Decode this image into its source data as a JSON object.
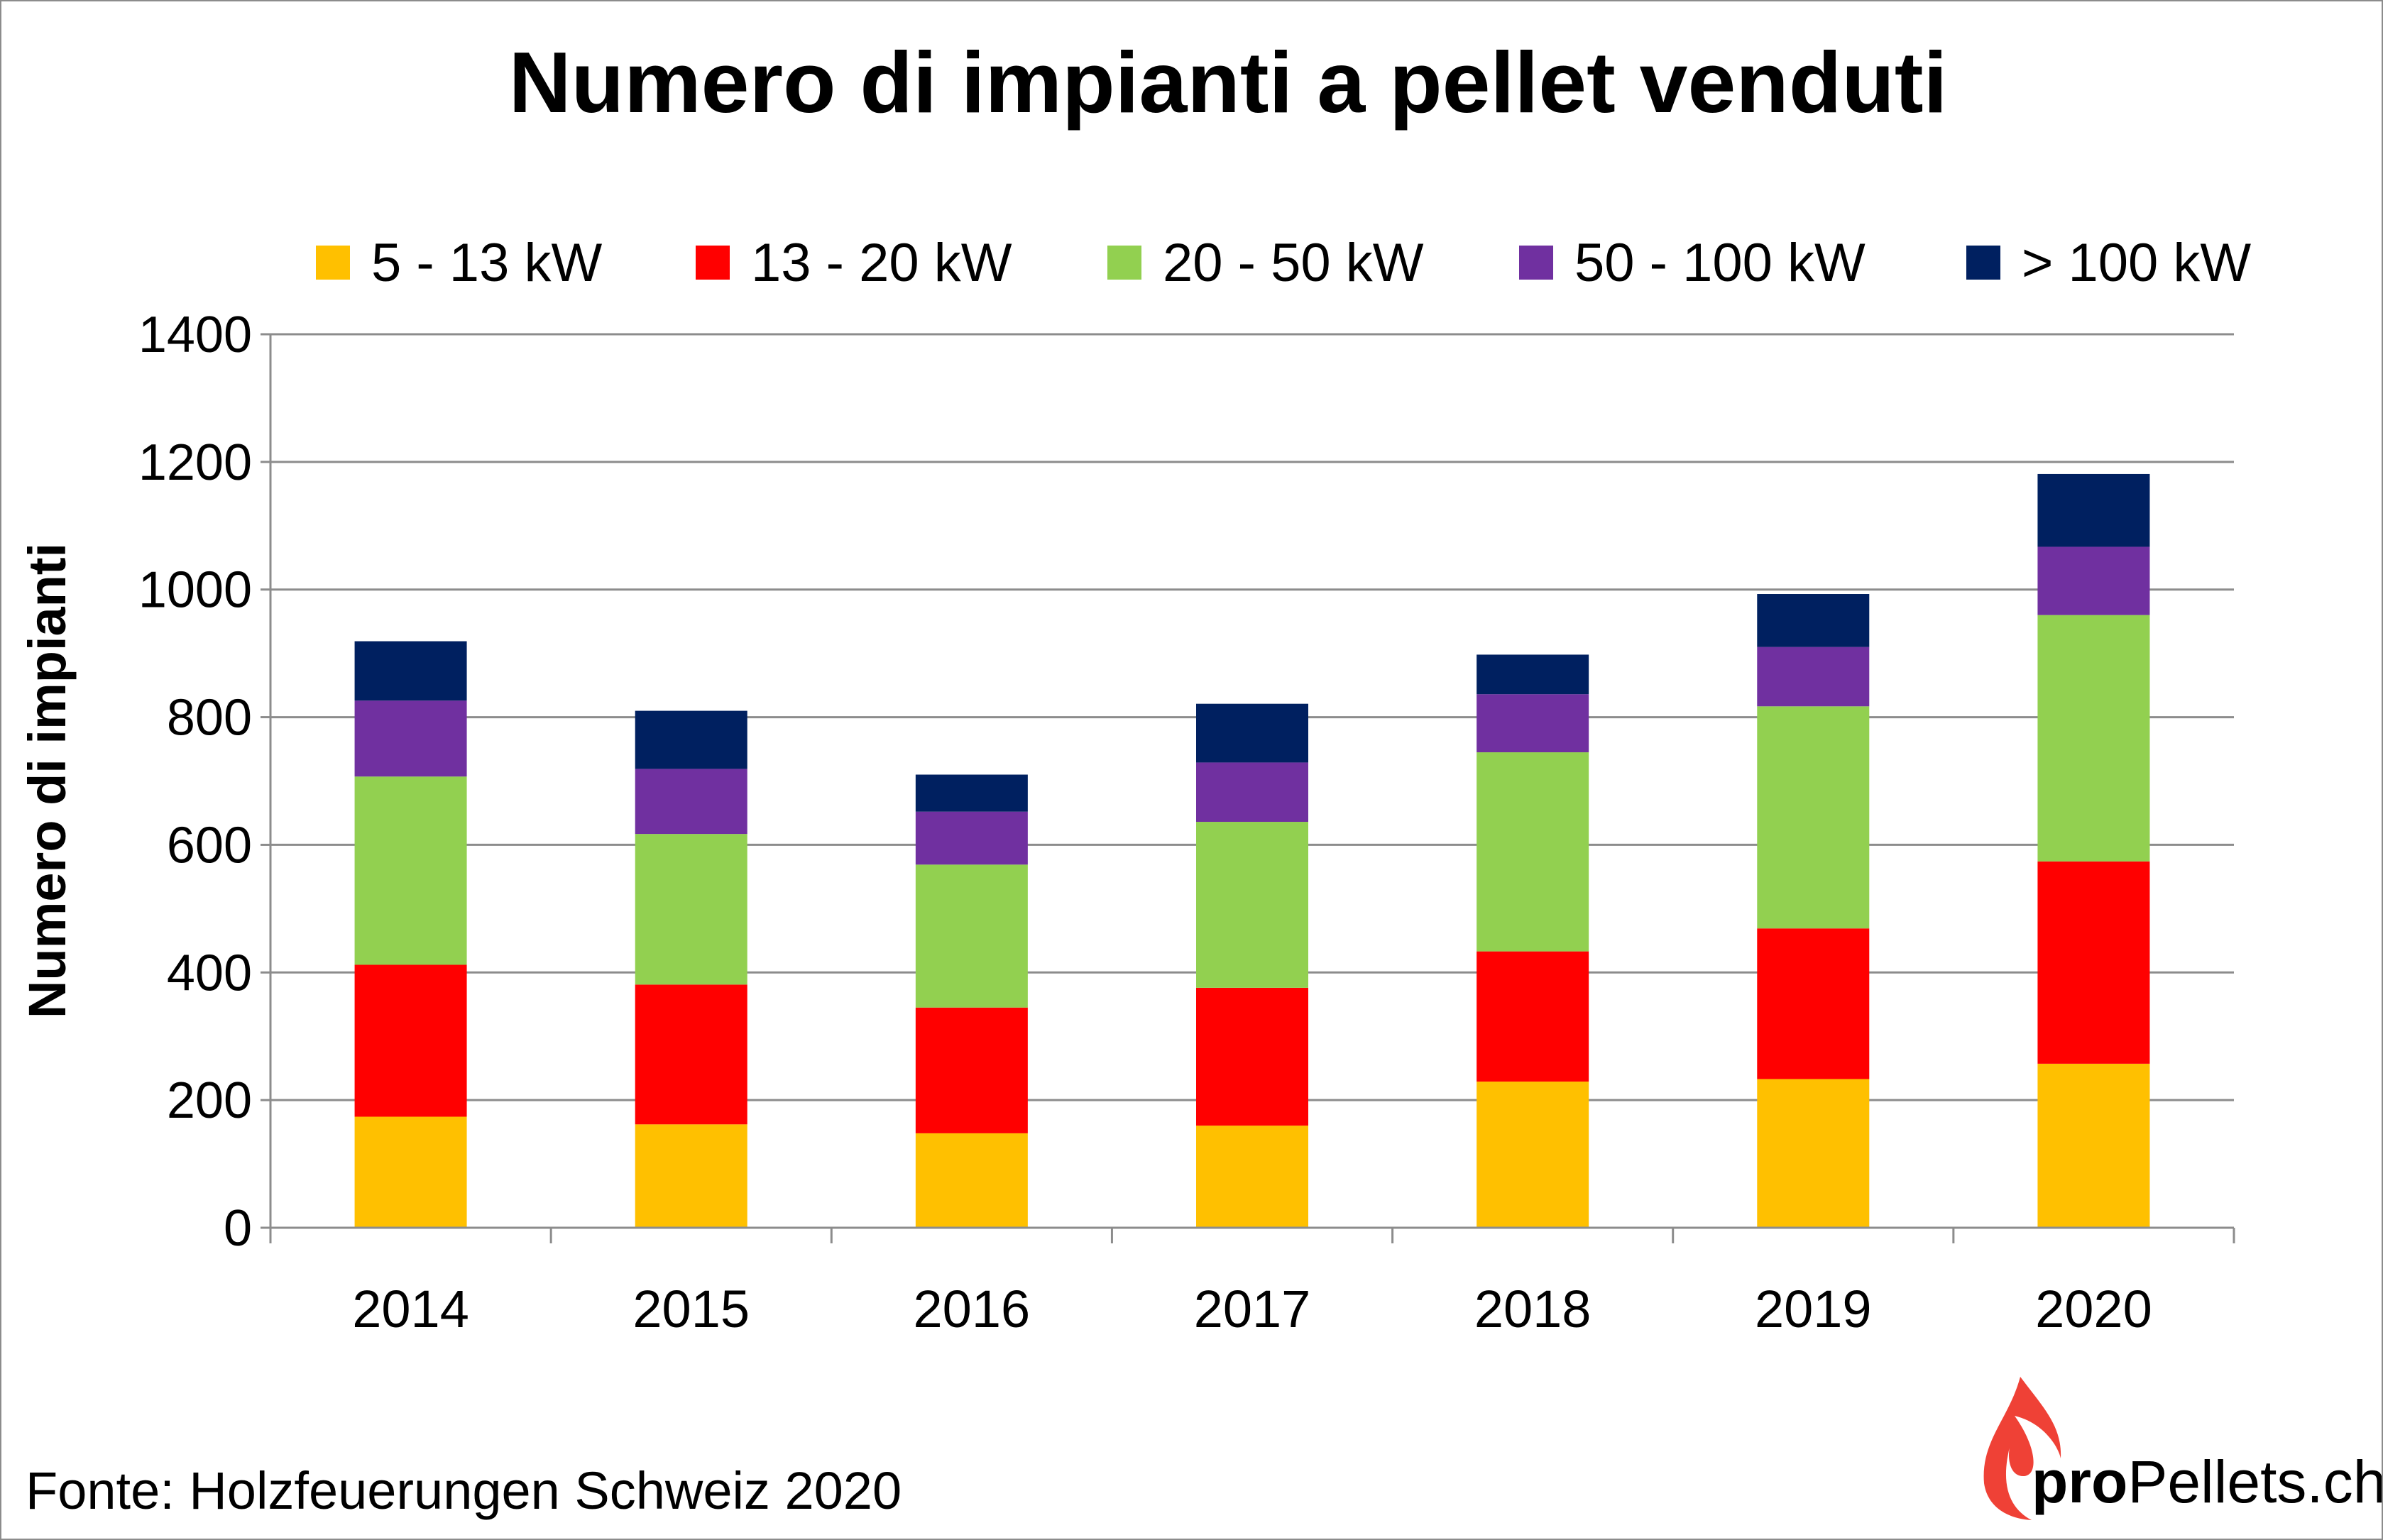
{
  "chart_data": {
    "type": "bar",
    "stacked": true,
    "title": "Numero di impianti a pellet venduti",
    "xlabel": "",
    "ylabel": "Numero di impianti",
    "ylim": [
      0,
      1400
    ],
    "yticks": [
      0,
      200,
      400,
      600,
      800,
      1000,
      1200,
      1400
    ],
    "grid": true,
    "legend_position": "top",
    "categories": [
      "2014",
      "2015",
      "2016",
      "2017",
      "2018",
      "2019",
      "2020"
    ],
    "series": [
      {
        "name": "5 - 13 kW",
        "color": "#FFC000",
        "values": [
          174,
          162,
          148,
          160,
          229,
          233,
          257
        ]
      },
      {
        "name": "13 - 20 kW",
        "color": "#FF0000",
        "values": [
          238,
          219,
          197,
          216,
          204,
          236,
          317
        ]
      },
      {
        "name": "20 - 50 kW",
        "color": "#92D050",
        "values": [
          295,
          236,
          224,
          260,
          312,
          348,
          386
        ]
      },
      {
        "name": "50 - 100 kW",
        "color": "#7030A0",
        "values": [
          119,
          102,
          83,
          93,
          91,
          93,
          107
        ]
      },
      {
        "name": "> 100 kW",
        "color": "#002060",
        "values": [
          93,
          91,
          58,
          92,
          62,
          83,
          114
        ]
      }
    ]
  },
  "footer": {
    "source": "Fonte: Holzfeuerungen Schweiz 2020"
  },
  "logo": {
    "text_bold": "pro",
    "text_regular": "Pellets.ch",
    "flame_color": "#EF4136"
  }
}
